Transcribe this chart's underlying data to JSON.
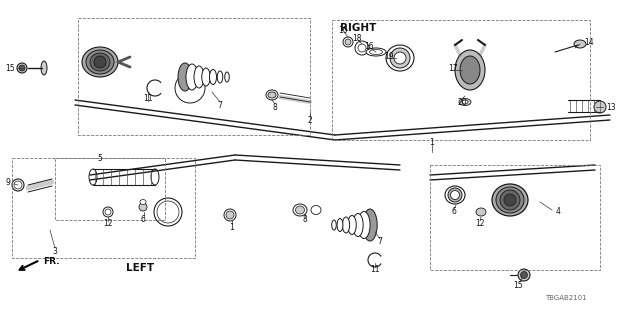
{
  "bg_color": "#ffffff",
  "diagram_color": "#1a1a1a",
  "label_color": "#111111",
  "figsize": [
    6.4,
    3.2
  ],
  "dpi": 100,
  "watermark": "TBGAB2101",
  "right_label": "RIGHT",
  "left_label": "LEFT",
  "fr_label": "FR.",
  "dash_color": "#777777",
  "gray_fill": "#888888",
  "light_gray": "#cccccc",
  "mid_gray": "#555555"
}
